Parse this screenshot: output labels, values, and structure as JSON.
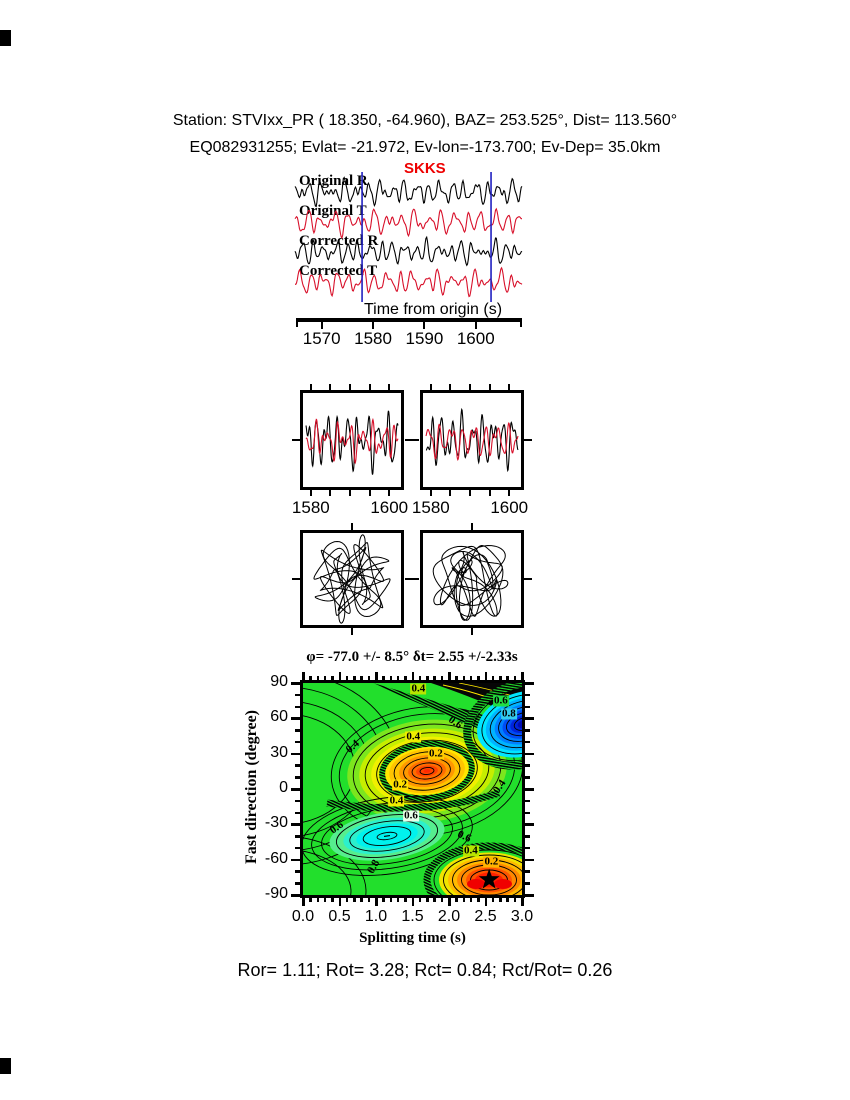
{
  "header": {
    "line1": "Station: STVIxx_PR (  18.350,  -64.960), BAZ=  253.525°, Dist=  113.560°",
    "line2": "EQ082931255; Evlat= -21.972, Ev-lon=-173.700; Ev-Dep= 35.0km"
  },
  "footer": {
    "stats": "Ror= 1.11; Rot= 3.28; Rct= 0.84; Rct/Rot= 0.26"
  },
  "chart_data": {
    "type": "multi-panel shear-wave splitting analysis figure",
    "panels": {
      "seismograms": {
        "phase": "SKKS",
        "phase_color": "#ee0000",
        "window_line_color": "#2020c0",
        "xlabel": "Time from origin (s)",
        "x_range": [
          1565,
          1609
        ],
        "x_ticks": [
          "1570",
          "1580",
          "1590",
          "1600"
        ],
        "x_tick_values": [
          1570,
          1580,
          1590,
          1600
        ],
        "analysis_window": [
          1578,
          1603
        ],
        "traces": [
          {
            "label": "Original R",
            "color": "#000000",
            "synth": [
              [
                6,
                19,
                0.5
              ],
              [
                4.5,
                27,
                2.1
              ],
              [
                3,
                12,
                4.2
              ],
              [
                2,
                38,
                1.0
              ],
              [
                1.5,
                55,
                3.3
              ]
            ]
          },
          {
            "label": "Original T",
            "color": "#d8102a",
            "synth": [
              [
                6.5,
                17,
                1.8
              ],
              [
                4,
                24,
                5.0
              ],
              [
                3.2,
                11,
                2.7
              ],
              [
                2.2,
                33,
                0.4
              ],
              [
                1.4,
                48,
                4.6
              ]
            ]
          },
          {
            "label": "Corrected R",
            "color": "#000000",
            "synth": [
              [
                5.5,
                20,
                3.9
              ],
              [
                4.8,
                26,
                1.2
              ],
              [
                2.8,
                13,
                5.5
              ],
              [
                2,
                36,
                2.6
              ],
              [
                1.3,
                52,
                0.8
              ]
            ]
          },
          {
            "label": "Corrected T",
            "color": "#d8102a",
            "synth": [
              [
                6,
                18,
                5.8
              ],
              [
                4.2,
                25,
                3.4
              ],
              [
                3,
                10,
                1.1
              ],
              [
                2.4,
                31,
                4.9
              ],
              [
                1.6,
                45,
                2.2
              ]
            ]
          }
        ]
      },
      "window_seismograms": {
        "x_range": [
          1578,
          1603
        ],
        "x_ticks": [
          "1580",
          "1600"
        ],
        "x_tick_values": [
          1580,
          1600
        ],
        "edge_tick_values": [
          1580,
          1585,
          1590,
          1595,
          1600
        ],
        "panels": [
          {
            "black": [
              [
                16,
                9,
                1.2
              ],
              [
                10,
                14,
                4.0
              ],
              [
                6,
                20,
                2.2
              ],
              [
                4,
                5,
                0.6
              ]
            ],
            "red": [
              [
                9,
                8,
                2.5
              ],
              [
                7,
                13,
                5.2
              ],
              [
                5,
                18,
                0.9
              ],
              [
                3,
                4,
                3.8
              ]
            ]
          },
          {
            "black": [
              [
                15,
                9,
                4.4
              ],
              [
                9,
                13,
                1.6
              ],
              [
                6,
                19,
                5.1
              ],
              [
                4,
                5,
                2.9
              ]
            ],
            "red": [
              [
                10,
                8,
                0.3
              ],
              [
                6,
                12,
                3.1
              ],
              [
                4,
                17,
                5.7
              ],
              [
                3,
                4,
                1.4
              ]
            ]
          }
        ]
      },
      "particle_motion": {
        "panels": [
          {
            "x": [
              [
                24,
                7,
                1.0
              ],
              [
                12,
                13,
                3.5
              ],
              [
                7,
                23,
                5.9
              ]
            ],
            "y": [
              [
                30,
                9,
                2.2
              ],
              [
                16,
                15,
                0.7
              ],
              [
                8,
                25,
                4.1
              ]
            ]
          },
          {
            "x": [
              [
                22,
                8,
                4.7
              ],
              [
                13,
                12,
                1.9
              ],
              [
                7,
                21,
                0.2
              ]
            ],
            "y": [
              [
                29,
                10,
                5.5
              ],
              [
                15,
                16,
                2.8
              ],
              [
                8,
                26,
                1.3
              ]
            ]
          }
        ]
      },
      "contour_map": {
        "title": "φ= -77.0 +/- 8.5° δt= 2.55 +/-2.33s",
        "xlabel": "Splitting time (s)",
        "ylabel": "Fast direction (degree)",
        "x_range": [
          0,
          3
        ],
        "y_range": [
          -90,
          90
        ],
        "x_ticks": [
          "0.0",
          "0.5",
          "1.0",
          "1.5",
          "2.0",
          "2.5",
          "3.0"
        ],
        "x_tick_values": [
          0.0,
          0.5,
          1.0,
          1.5,
          2.0,
          2.5,
          3.0
        ],
        "y_ticks": [
          "90",
          "60",
          "30",
          "0",
          "-30",
          "-60",
          "-90"
        ],
        "y_tick_values": [
          90,
          60,
          30,
          0,
          -30,
          -60,
          -90
        ],
        "best_fit": {
          "phi_deg": -77.0,
          "phi_err_deg": 8.5,
          "dt_s": 2.55,
          "dt_err_s": 2.33
        },
        "star": {
          "dt_s": 2.55,
          "phi_deg": -77
        },
        "extrema": [
          {
            "kind": "high",
            "dt_s": 1.7,
            "phi_deg": 15,
            "color": "orange-red"
          },
          {
            "kind": "low",
            "dt_s": 1.15,
            "phi_deg": -40,
            "color": "cyan"
          },
          {
            "kind": "low",
            "dt_s": 3.0,
            "phi_deg": 57,
            "color": "blue"
          },
          {
            "kind": "high",
            "dt_s": 2.55,
            "phi_deg": -77,
            "color": "red",
            "note": "best solution, marked with star"
          }
        ],
        "contour_labels": [
          {
            "text": "0.4",
            "dt": 1.58,
            "phi": 85,
            "bg": "#b8e400",
            "rot": 0
          },
          {
            "text": "0.6",
            "dt": 2.08,
            "phi": 56,
            "bg": "",
            "rot": 35
          },
          {
            "text": "0.6",
            "dt": 2.71,
            "phi": 75,
            "bg": "#22dd44",
            "rot": 0
          },
          {
            "text": "0.8",
            "dt": 2.82,
            "phi": 64,
            "bg": "#33ccee",
            "rot": 0
          },
          {
            "text": "0.4",
            "dt": 1.51,
            "phi": 44,
            "bg": "#f0ee00",
            "rot": 0
          },
          {
            "text": "0.2",
            "dt": 1.82,
            "phi": 30,
            "bg": "#ffcc00",
            "rot": 0
          },
          {
            "text": "0.4",
            "dt": 0.68,
            "phi": 36,
            "bg": "",
            "rot": -40
          },
          {
            "text": "0.4",
            "dt": 2.7,
            "phi": 2,
            "bg": "",
            "rot": -55
          },
          {
            "text": "0.2",
            "dt": 1.33,
            "phi": 3,
            "bg": "#ffe000",
            "rot": 0
          },
          {
            "text": "0.4",
            "dt": 1.28,
            "phi": -10,
            "bg": "#f0ee00",
            "rot": 0
          },
          {
            "text": "0.6",
            "dt": 1.48,
            "phi": -23,
            "bg": "#e8ffe8",
            "rot": 0
          },
          {
            "text": "0.6",
            "dt": 0.47,
            "phi": -33,
            "bg": "",
            "rot": -35
          },
          {
            "text": "0.6",
            "dt": 2.21,
            "phi": -41,
            "bg": "",
            "rot": 25
          },
          {
            "text": "0.4",
            "dt": 2.3,
            "phi": -53,
            "bg": "#b8e400",
            "rot": 0
          },
          {
            "text": "0.2",
            "dt": 2.58,
            "phi": -62,
            "bg": "#ffb400",
            "rot": 0
          },
          {
            "text": "0.8",
            "dt": 0.97,
            "phi": -66,
            "bg": "",
            "rot": -60
          }
        ]
      }
    }
  }
}
